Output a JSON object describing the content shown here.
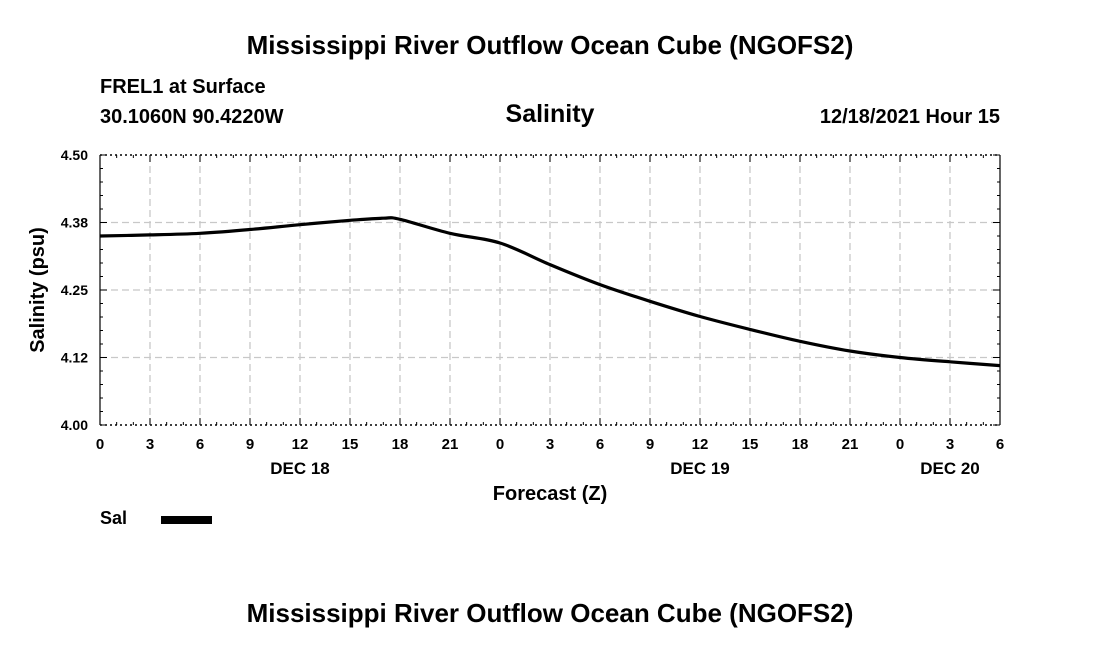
{
  "header": {
    "title": "Mississippi River Outflow Ocean Cube (NGOFS2)",
    "station": "FREL1 at Surface",
    "coords": "30.1060N  90.4220W",
    "timestamp": "12/18/2021 Hour 15"
  },
  "footer": {
    "title": "Mississippi River Outflow Ocean Cube (NGOFS2)"
  },
  "legend": {
    "label": "Sal",
    "color": "#000000"
  },
  "chart_data": {
    "type": "line",
    "title": "Salinity",
    "xlabel": "Forecast (Z)",
    "ylabel": "Salinity (psu)",
    "xlim": [
      0,
      54
    ],
    "ylim": [
      4.0,
      4.5
    ],
    "x_ticks": [
      0,
      3,
      6,
      9,
      12,
      15,
      18,
      21,
      24,
      27,
      30,
      33,
      36,
      39,
      42,
      45,
      48,
      51,
      54
    ],
    "x_tick_labels": [
      "0",
      "3",
      "6",
      "9",
      "12",
      "15",
      "18",
      "21",
      "0",
      "3",
      "6",
      "9",
      "12",
      "15",
      "18",
      "21",
      "0",
      "3",
      "6"
    ],
    "y_ticks": [
      4.0,
      4.125,
      4.25,
      4.375,
      4.5
    ],
    "y_tick_labels": [
      "4.00",
      "4.12",
      "4.25",
      "4.38",
      "4.50"
    ],
    "date_labels": [
      {
        "x": 12,
        "label": "DEC 18"
      },
      {
        "x": 36,
        "label": "DEC 19"
      },
      {
        "x": 51,
        "label": "DEC 20"
      }
    ],
    "grid": true,
    "series": [
      {
        "name": "Sal",
        "x": [
          0,
          3,
          6,
          9,
          12,
          15,
          17,
          18,
          21,
          24,
          27,
          30,
          33,
          36,
          39,
          42,
          45,
          48,
          51,
          54
        ],
        "values": [
          4.35,
          4.352,
          4.355,
          4.362,
          4.371,
          4.379,
          4.383,
          4.381,
          4.355,
          4.337,
          4.297,
          4.26,
          4.229,
          4.201,
          4.177,
          4.155,
          4.137,
          4.125,
          4.117,
          4.11
        ]
      }
    ]
  }
}
